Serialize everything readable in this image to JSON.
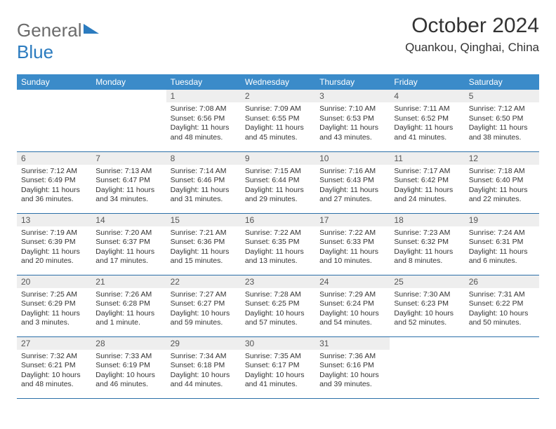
{
  "logo": {
    "text_gray": "General",
    "text_blue": "Blue"
  },
  "title": "October 2024",
  "location": "Quankou, Qinghai, China",
  "colors": {
    "header_bg": "#3b8bc9",
    "header_text": "#ffffff",
    "daynum_bg": "#eeeeee",
    "row_border": "#2b6fa8",
    "logo_gray": "#6b6b6b",
    "logo_blue": "#2b7bbf"
  },
  "dayHeaders": [
    "Sunday",
    "Monday",
    "Tuesday",
    "Wednesday",
    "Thursday",
    "Friday",
    "Saturday"
  ],
  "weeks": [
    [
      null,
      null,
      {
        "n": 1,
        "sunrise": "7:08 AM",
        "sunset": "6:56 PM",
        "daylight": "11 hours and 48 minutes."
      },
      {
        "n": 2,
        "sunrise": "7:09 AM",
        "sunset": "6:55 PM",
        "daylight": "11 hours and 45 minutes."
      },
      {
        "n": 3,
        "sunrise": "7:10 AM",
        "sunset": "6:53 PM",
        "daylight": "11 hours and 43 minutes."
      },
      {
        "n": 4,
        "sunrise": "7:11 AM",
        "sunset": "6:52 PM",
        "daylight": "11 hours and 41 minutes."
      },
      {
        "n": 5,
        "sunrise": "7:12 AM",
        "sunset": "6:50 PM",
        "daylight": "11 hours and 38 minutes."
      }
    ],
    [
      {
        "n": 6,
        "sunrise": "7:12 AM",
        "sunset": "6:49 PM",
        "daylight": "11 hours and 36 minutes."
      },
      {
        "n": 7,
        "sunrise": "7:13 AM",
        "sunset": "6:47 PM",
        "daylight": "11 hours and 34 minutes."
      },
      {
        "n": 8,
        "sunrise": "7:14 AM",
        "sunset": "6:46 PM",
        "daylight": "11 hours and 31 minutes."
      },
      {
        "n": 9,
        "sunrise": "7:15 AM",
        "sunset": "6:44 PM",
        "daylight": "11 hours and 29 minutes."
      },
      {
        "n": 10,
        "sunrise": "7:16 AM",
        "sunset": "6:43 PM",
        "daylight": "11 hours and 27 minutes."
      },
      {
        "n": 11,
        "sunrise": "7:17 AM",
        "sunset": "6:42 PM",
        "daylight": "11 hours and 24 minutes."
      },
      {
        "n": 12,
        "sunrise": "7:18 AM",
        "sunset": "6:40 PM",
        "daylight": "11 hours and 22 minutes."
      }
    ],
    [
      {
        "n": 13,
        "sunrise": "7:19 AM",
        "sunset": "6:39 PM",
        "daylight": "11 hours and 20 minutes."
      },
      {
        "n": 14,
        "sunrise": "7:20 AM",
        "sunset": "6:37 PM",
        "daylight": "11 hours and 17 minutes."
      },
      {
        "n": 15,
        "sunrise": "7:21 AM",
        "sunset": "6:36 PM",
        "daylight": "11 hours and 15 minutes."
      },
      {
        "n": 16,
        "sunrise": "7:22 AM",
        "sunset": "6:35 PM",
        "daylight": "11 hours and 13 minutes."
      },
      {
        "n": 17,
        "sunrise": "7:22 AM",
        "sunset": "6:33 PM",
        "daylight": "11 hours and 10 minutes."
      },
      {
        "n": 18,
        "sunrise": "7:23 AM",
        "sunset": "6:32 PM",
        "daylight": "11 hours and 8 minutes."
      },
      {
        "n": 19,
        "sunrise": "7:24 AM",
        "sunset": "6:31 PM",
        "daylight": "11 hours and 6 minutes."
      }
    ],
    [
      {
        "n": 20,
        "sunrise": "7:25 AM",
        "sunset": "6:29 PM",
        "daylight": "11 hours and 3 minutes."
      },
      {
        "n": 21,
        "sunrise": "7:26 AM",
        "sunset": "6:28 PM",
        "daylight": "11 hours and 1 minute."
      },
      {
        "n": 22,
        "sunrise": "7:27 AM",
        "sunset": "6:27 PM",
        "daylight": "10 hours and 59 minutes."
      },
      {
        "n": 23,
        "sunrise": "7:28 AM",
        "sunset": "6:25 PM",
        "daylight": "10 hours and 57 minutes."
      },
      {
        "n": 24,
        "sunrise": "7:29 AM",
        "sunset": "6:24 PM",
        "daylight": "10 hours and 54 minutes."
      },
      {
        "n": 25,
        "sunrise": "7:30 AM",
        "sunset": "6:23 PM",
        "daylight": "10 hours and 52 minutes."
      },
      {
        "n": 26,
        "sunrise": "7:31 AM",
        "sunset": "6:22 PM",
        "daylight": "10 hours and 50 minutes."
      }
    ],
    [
      {
        "n": 27,
        "sunrise": "7:32 AM",
        "sunset": "6:21 PM",
        "daylight": "10 hours and 48 minutes."
      },
      {
        "n": 28,
        "sunrise": "7:33 AM",
        "sunset": "6:19 PM",
        "daylight": "10 hours and 46 minutes."
      },
      {
        "n": 29,
        "sunrise": "7:34 AM",
        "sunset": "6:18 PM",
        "daylight": "10 hours and 44 minutes."
      },
      {
        "n": 30,
        "sunrise": "7:35 AM",
        "sunset": "6:17 PM",
        "daylight": "10 hours and 41 minutes."
      },
      {
        "n": 31,
        "sunrise": "7:36 AM",
        "sunset": "6:16 PM",
        "daylight": "10 hours and 39 minutes."
      },
      null,
      null
    ]
  ],
  "labels": {
    "sunrise": "Sunrise:",
    "sunset": "Sunset:",
    "daylight": "Daylight:"
  }
}
